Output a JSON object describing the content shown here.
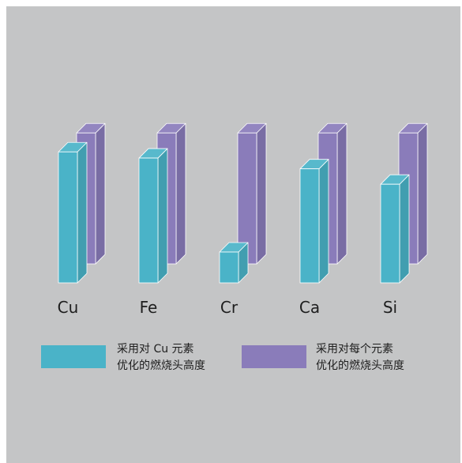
{
  "chart_data": {
    "type": "bar",
    "style": "3d-grouped",
    "categories": [
      "Cu",
      "Fe",
      "Cr",
      "Ca",
      "Si"
    ],
    "series": [
      {
        "name": "采用对 Cu 元素优化的燃烧头高度",
        "legend_lines": [
          "采用对 Cu 元素",
          "优化的燃烧头高度"
        ],
        "color": "#4ab3c8",
        "values": [
          0.85,
          0.81,
          0.2,
          0.74,
          0.64
        ]
      },
      {
        "name": "采用对每个元素优化的燃烧头高度",
        "legend_lines": [
          "采用对每个元素",
          "优化的燃烧头高度"
        ],
        "color": "#8a7cba",
        "values": [
          0.85,
          0.85,
          0.85,
          0.85,
          0.85
        ]
      }
    ],
    "axes_visible": false,
    "grid": false,
    "legend_position": "bottom",
    "background_color": "#c4c5c6"
  }
}
